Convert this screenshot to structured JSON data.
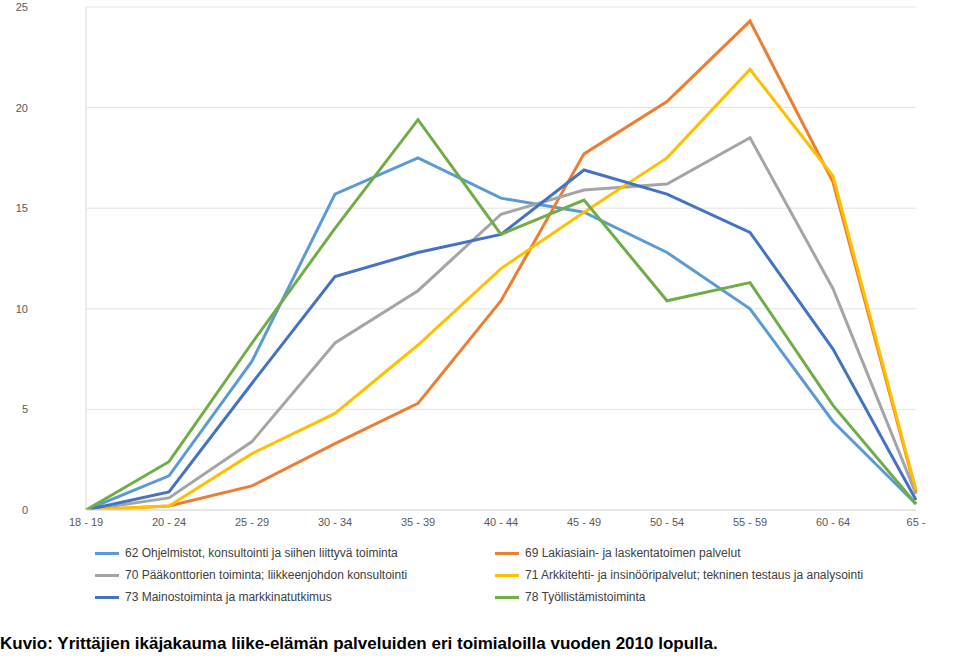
{
  "chart_data": {
    "type": "line",
    "title": "Kuvio: Yrittäjien ikäjakauma liike-elämän palveluiden eri toimialoilla vuoden 2010 lopulla.",
    "categories": [
      "18 - 19",
      "20 - 24",
      "25 - 29",
      "30 - 34",
      "35 - 39",
      "40 - 44",
      "45 - 49",
      "50 - 54",
      "55 - 59",
      "60 - 64",
      "65 -"
    ],
    "series": [
      {
        "name": "62 Ohjelmistot, konsultointi ja siihen liittyvä toiminta",
        "color": "#5b9bd5",
        "values": [
          0,
          1.7,
          7.4,
          15.7,
          17.5,
          15.5,
          14.8,
          12.8,
          10.0,
          4.4,
          0.3
        ]
      },
      {
        "name": "69 Lakiasiain- ja laskentatoimen palvelut",
        "color": "#ed7d31",
        "values": [
          0,
          0.2,
          1.2,
          3.3,
          5.3,
          10.4,
          17.7,
          20.3,
          24.3,
          16.3,
          0.9
        ]
      },
      {
        "name": "70 Pääkonttorien toiminta; liikkeenjohdon konsultointi",
        "color": "#a5a5a5",
        "values": [
          0,
          0.6,
          3.4,
          8.3,
          10.9,
          14.7,
          15.9,
          16.2,
          18.5,
          11.0,
          0.8
        ]
      },
      {
        "name": "71 Arkkitehti- ja insinööripalvelut; tekninen testaus ja analysointi",
        "color": "#ffc000",
        "values": [
          0,
          0.2,
          2.8,
          4.8,
          8.2,
          12.0,
          14.8,
          17.5,
          21.9,
          16.6,
          1.0
        ]
      },
      {
        "name": "73 Mainostoiminta ja markkinatutkimus",
        "color": "#4472c4",
        "values": [
          0,
          0.9,
          6.3,
          11.6,
          12.8,
          13.7,
          16.9,
          15.7,
          13.8,
          8.0,
          0.5
        ]
      },
      {
        "name": "78 Työllistämistoiminta",
        "color": "#70ad47",
        "values": [
          0,
          2.4,
          8.3,
          14.0,
          19.4,
          13.7,
          15.4,
          10.4,
          11.3,
          5.2,
          0.3
        ]
      }
    ],
    "ylim": [
      0,
      25
    ],
    "yticks": [
      0,
      5,
      10,
      15,
      20,
      25
    ],
    "grid": true,
    "legend": "bottom"
  }
}
